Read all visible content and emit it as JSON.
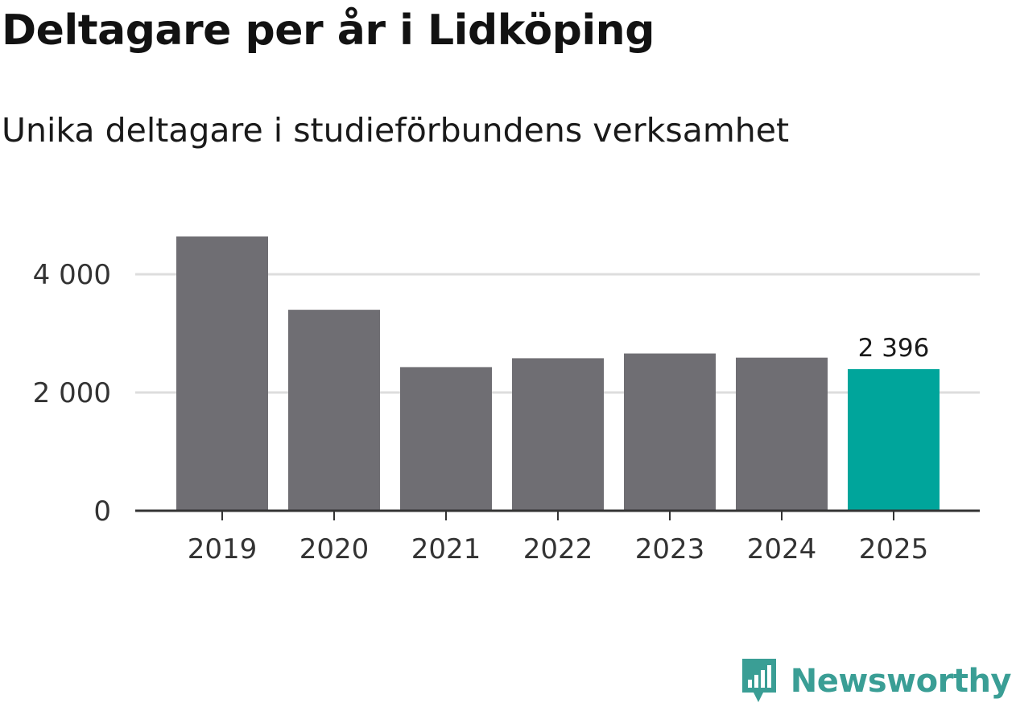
{
  "title": "Deltagare per år i Lidköping",
  "subtitle": "Unika deltagare i studieförbundens verksamhet",
  "brand": {
    "name": "Newsworthy",
    "color": "#3a9e95",
    "icon": "newsworthy-logo-icon"
  },
  "colors": {
    "bar": "#6f6e73",
    "highlight": "#00a59b",
    "grid": "#dddddd",
    "axis": "#333333"
  },
  "chart_data": {
    "type": "bar",
    "categories": [
      "2019",
      "2020",
      "2021",
      "2022",
      "2023",
      "2024",
      "2025"
    ],
    "values": [
      4640,
      3400,
      2430,
      2580,
      2660,
      2590,
      2396
    ],
    "highlight_index": 6,
    "data_labels": [
      {
        "index": 6,
        "text": "2 396"
      }
    ],
    "yticks": [
      0,
      2000,
      4000
    ],
    "ytick_labels": [
      "0",
      "2 000",
      "4 000"
    ],
    "ylim": [
      0,
      4640
    ],
    "xlabel": "",
    "ylabel": "",
    "grid": true
  }
}
